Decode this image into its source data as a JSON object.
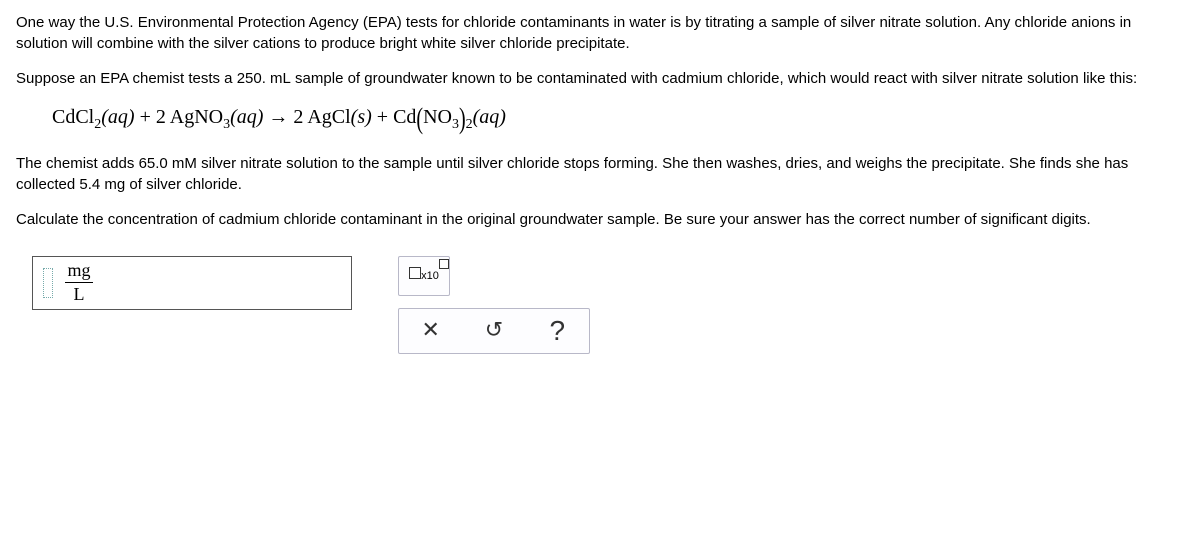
{
  "paragraphs": {
    "intro": "One way the U.S. Environmental Protection Agency (EPA) tests for chloride contaminants in water is by titrating a sample of silver nitrate solution. Any chloride anions in solution will combine with the silver cations to produce bright white silver chloride precipitate.",
    "setup_a": "Suppose an EPA chemist tests a ",
    "setup_vol": "250. mL",
    "setup_b": " sample of groundwater known to be contaminated with cadmium chloride, which would react with silver nitrate solution like this:",
    "after_eq_a": "The chemist adds ",
    "after_eq_conc": "65.0 mM",
    "after_eq_b": " silver nitrate solution to the sample until silver chloride stops forming. She then washes, dries, and weighs the precipitate. She finds she has collected ",
    "after_eq_mass": "5.4 mg",
    "after_eq_c": " of silver chloride.",
    "question": "Calculate the concentration of cadmium chloride contaminant in the original groundwater sample. Be sure your answer has the correct number of significant digits."
  },
  "equation": {
    "r1": "CdCl",
    "r1_sub": "2",
    "r1_state": "(aq)",
    "plus1": " + ",
    "coef2": "2",
    "r2": " AgNO",
    "r2_sub": "3",
    "r2_state": "(aq)",
    "arrow": " → ",
    "coef2b": "2",
    "p1": " AgCl",
    "p1_state": "(s)",
    "plus2": " + ",
    "p2": "Cd",
    "p2_anion": "NO",
    "p2_anion_sub": "3",
    "p2_outer_sub": "2",
    "p2_state": "(aq)"
  },
  "answer": {
    "unit_top": "mg",
    "unit_bot": "L"
  },
  "tools": {
    "sci_label": "x10",
    "clear": "✕",
    "undo": "↺",
    "help": "?"
  },
  "style": {
    "body_font_size": 15,
    "eq_font_size": 20,
    "border_color": "#555",
    "tool_border": "#b8b8c8",
    "tool_bg": "#fdfdff",
    "cursor_border": "#7aa",
    "answer_box_w": 320,
    "answer_box_h": 54
  }
}
